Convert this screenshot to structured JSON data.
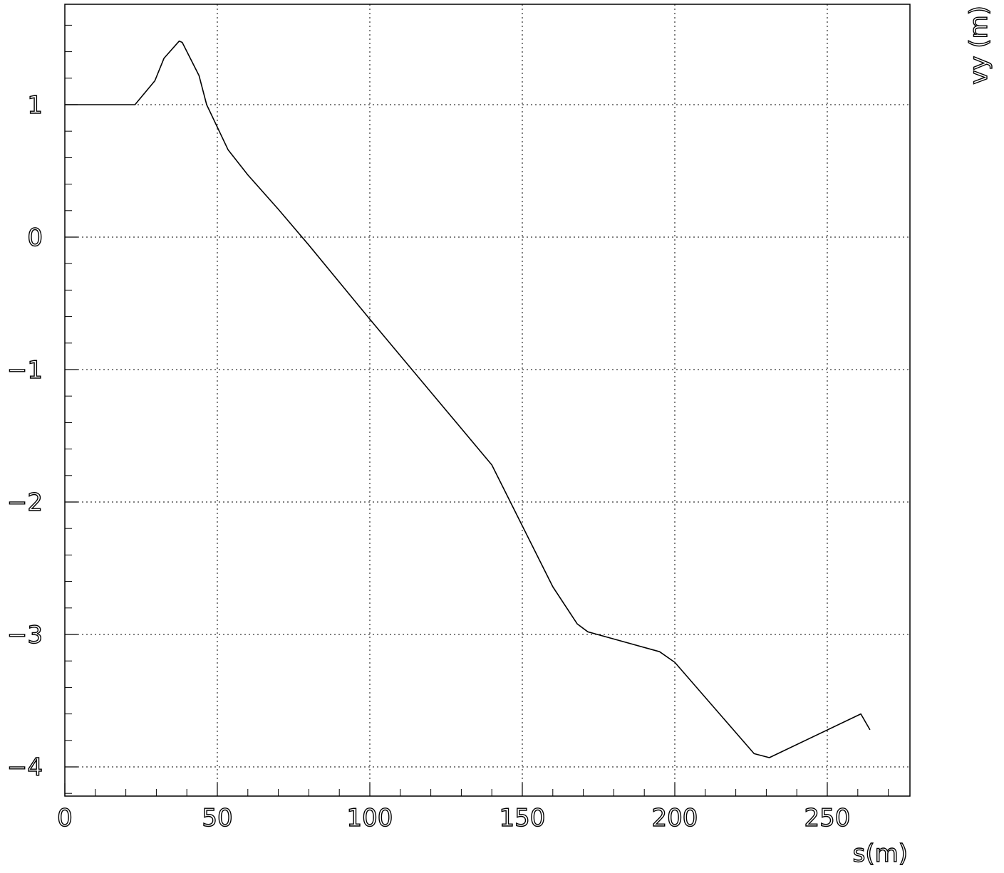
{
  "chart_data": {
    "type": "line",
    "xlabel": "s(m)",
    "ylabel": "vy (m)",
    "xlim": [
      0,
      276
    ],
    "ylim": [
      -4.2,
      1.75
    ],
    "grid": true,
    "legend": "none",
    "x_ticks": [
      {
        "value": 0,
        "label": "0"
      },
      {
        "value": 50,
        "label": "50"
      },
      {
        "value": 100,
        "label": "100"
      },
      {
        "value": 150,
        "label": "150"
      },
      {
        "value": 200,
        "label": "200"
      },
      {
        "value": 250,
        "label": "250"
      }
    ],
    "y_ticks": [
      {
        "value": 1,
        "label": "1"
      },
      {
        "value": 0,
        "label": "0"
      },
      {
        "value": -1,
        "label": "−1"
      },
      {
        "value": -2,
        "label": "−2"
      },
      {
        "value": -3,
        "label": "−3"
      },
      {
        "value": -4,
        "label": "−4"
      }
    ],
    "series": [
      {
        "color": "#000000",
        "x": [
          0,
          23,
          29.5,
          32.5,
          37.5,
          38.5,
          44,
          46.5,
          53.5,
          60,
          70,
          80,
          100,
          120,
          140,
          160,
          168,
          171.5,
          195,
          200,
          226,
          231,
          261,
          264
        ],
        "y": [
          1.0,
          1.0,
          1.18,
          1.35,
          1.48,
          1.47,
          1.22,
          1.0,
          0.66,
          0.47,
          0.21,
          -0.06,
          -0.62,
          -1.17,
          -1.72,
          -2.64,
          -2.92,
          -2.98,
          -3.13,
          -3.21,
          -3.9,
          -3.93,
          -3.6,
          -3.72
        ]
      }
    ]
  }
}
